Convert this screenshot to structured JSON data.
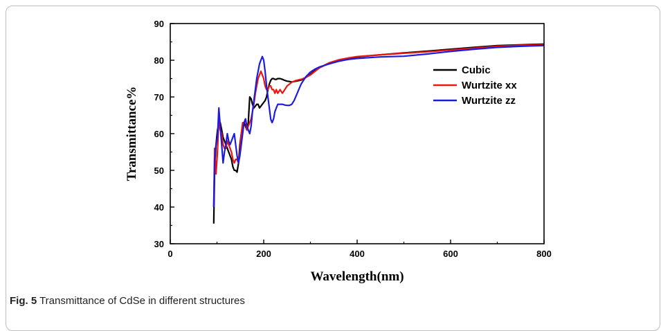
{
  "figure": {
    "label": "Fig. 5",
    "caption": "Transmittance of CdSe in different structures"
  },
  "chart_data": {
    "type": "line",
    "title": "",
    "xlabel": "Wavelength(nm)",
    "ylabel": "Transmittance%",
    "xlim": [
      0,
      800
    ],
    "ylim": [
      30,
      90
    ],
    "xticks": [
      0,
      200,
      400,
      600,
      800
    ],
    "yticks": [
      30,
      40,
      50,
      60,
      70,
      80,
      90
    ],
    "grid": false,
    "legend_position": "top-right",
    "series": [
      {
        "name": "Cubic",
        "color": "#000000",
        "x": [
          93,
          95,
          98,
          101,
          104,
          107,
          110,
          113,
          116,
          119,
          122,
          125,
          128,
          131,
          134,
          137,
          140,
          143,
          146,
          149,
          152,
          155,
          158,
          161,
          164,
          167,
          170,
          173,
          176,
          179,
          182,
          185,
          188,
          191,
          194,
          197,
          200,
          203,
          206,
          209,
          212,
          215,
          218,
          221,
          224,
          227,
          230,
          235,
          240,
          245,
          250,
          255,
          260,
          265,
          270,
          280,
          290,
          300,
          310,
          320,
          340,
          360,
          380,
          400,
          450,
          500,
          550,
          600,
          650,
          700,
          750,
          800
        ],
        "y": [
          35.5,
          50,
          57,
          61,
          62.5,
          63,
          61,
          59,
          58,
          57,
          56,
          55,
          54,
          53,
          51,
          50,
          50,
          49.5,
          52,
          57,
          60,
          62,
          63,
          62,
          61,
          63,
          70,
          69.5,
          68,
          67,
          67.5,
          68,
          68,
          67,
          67.5,
          68,
          68.5,
          69,
          70,
          72,
          73.5,
          74.5,
          75,
          75,
          74.8,
          74.8,
          75,
          75,
          74.8,
          74.5,
          74.3,
          74.2,
          74.1,
          74.2,
          74.3,
          74.6,
          75.3,
          76.2,
          77.2,
          78,
          79.2,
          80,
          80.5,
          80.9,
          81.5,
          82,
          82.5,
          83,
          83.5,
          84,
          84.2,
          84.4
        ]
      },
      {
        "name": "Wurtzite xx",
        "color": "#e8170f",
        "x": [
          93,
          95,
          98,
          101,
          104,
          107,
          110,
          113,
          116,
          119,
          122,
          125,
          128,
          131,
          134,
          137,
          140,
          143,
          146,
          149,
          152,
          155,
          158,
          161,
          164,
          167,
          170,
          173,
          176,
          179,
          182,
          185,
          188,
          191,
          194,
          197,
          200,
          203,
          206,
          209,
          212,
          215,
          218,
          221,
          224,
          227,
          230,
          235,
          240,
          245,
          250,
          255,
          260,
          265,
          270,
          280,
          290,
          300,
          310,
          320,
          340,
          360,
          380,
          400,
          450,
          500,
          550,
          600,
          650,
          700,
          750,
          800
        ],
        "y": [
          40,
          56,
          49,
          55,
          64,
          61,
          60,
          57,
          56,
          56,
          58,
          57,
          56,
          55,
          53,
          52,
          53,
          53,
          52,
          55,
          60,
          63,
          63,
          64,
          61,
          62,
          63,
          64,
          66,
          68,
          71,
          73,
          75,
          76,
          77,
          76,
          75,
          73,
          72,
          72,
          73,
          73,
          72,
          72,
          71,
          72,
          71,
          72,
          71,
          72,
          73,
          73.5,
          74,
          74.3,
          74.5,
          74.8,
          75.3,
          76,
          77,
          78,
          79.3,
          80.1,
          80.6,
          81,
          81.5,
          81.9,
          82.3,
          82.8,
          83.3,
          83.8,
          84.1,
          84.2
        ]
      },
      {
        "name": "Wurtzite zz",
        "color": "#1c1ce0",
        "x": [
          93,
          95,
          98,
          101,
          104,
          107,
          110,
          113,
          116,
          119,
          122,
          125,
          128,
          131,
          134,
          137,
          140,
          143,
          146,
          149,
          152,
          155,
          158,
          161,
          164,
          167,
          170,
          173,
          176,
          179,
          182,
          185,
          188,
          191,
          194,
          197,
          200,
          203,
          206,
          209,
          212,
          215,
          218,
          221,
          224,
          227,
          230,
          235,
          240,
          245,
          250,
          255,
          260,
          265,
          270,
          280,
          290,
          300,
          310,
          320,
          340,
          360,
          380,
          400,
          450,
          500,
          550,
          600,
          650,
          700,
          750,
          800
        ],
        "y": [
          40,
          53,
          57,
          59,
          67,
          62,
          57,
          52,
          55,
          57,
          60,
          58,
          57,
          58,
          59,
          60,
          57,
          54,
          52,
          54,
          57,
          60,
          63,
          64,
          62,
          61,
          60,
          62,
          66,
          69,
          72,
          75,
          77,
          79,
          80,
          81,
          80,
          77,
          73,
          70,
          67,
          64,
          63,
          64,
          66,
          67,
          68,
          68,
          68,
          67.8,
          67.7,
          67.7,
          68,
          69,
          70.5,
          73.5,
          75.5,
          76.8,
          77.6,
          78.2,
          79,
          79.7,
          80.2,
          80.5,
          80.9,
          81.1,
          81.7,
          82.4,
          83,
          83.5,
          83.8,
          84
        ]
      }
    ]
  }
}
